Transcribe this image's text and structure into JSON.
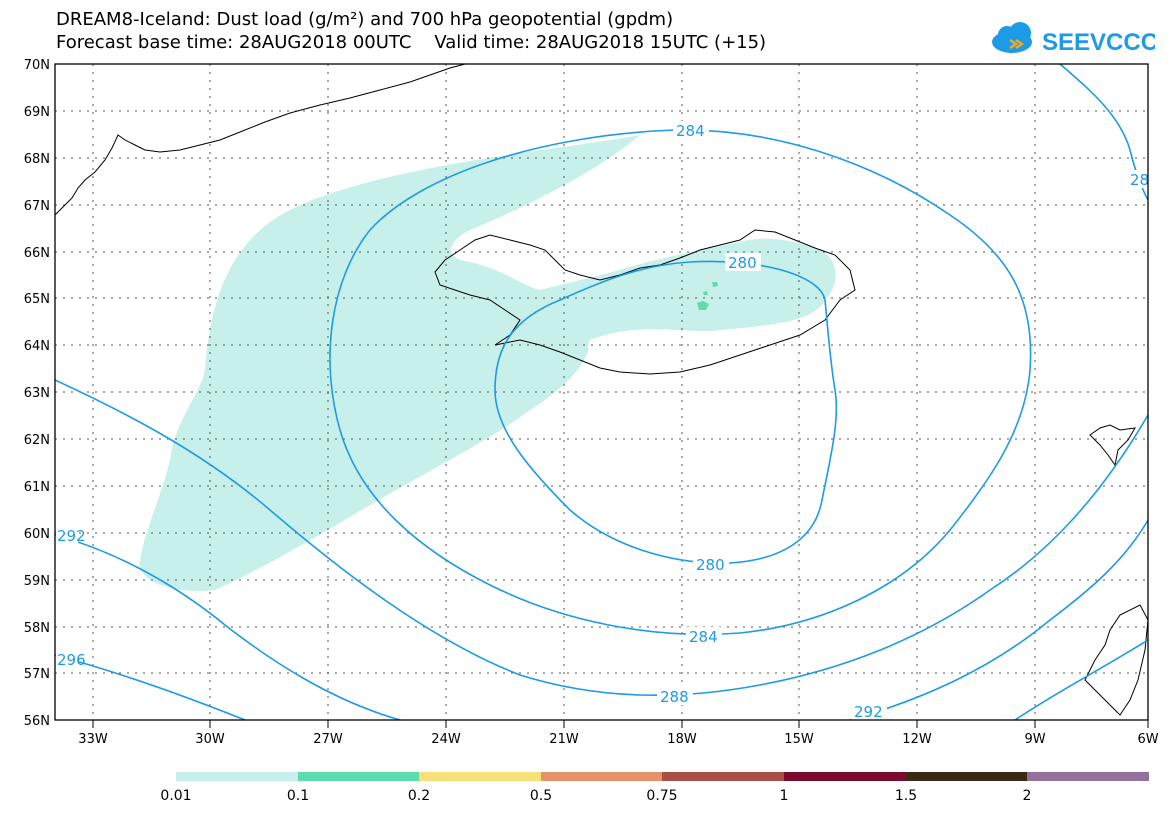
{
  "header": {
    "title_line1": "DREAM8-Iceland: Dust load (g/m²) and 700 hPa geopotential (gpdm)",
    "title_line2": "Forecast base time: 28AUG2018 00UTC    Valid time: 28AUG2018 15UTC (+15)",
    "logo_text": "SEEVCCC",
    "logo_icon": "cloud-icon"
  },
  "map": {
    "lat_labels": [
      "70N",
      "69N",
      "68N",
      "67N",
      "66N",
      "65N",
      "64N",
      "63N",
      "62N",
      "61N",
      "60N",
      "59N",
      "58N",
      "57N",
      "56N"
    ],
    "lon_labels": [
      "33W",
      "30W",
      "27W",
      "24W",
      "21W",
      "18W",
      "15W",
      "12W",
      "9W",
      "6W"
    ],
    "contour_labels": [
      "284",
      "280",
      "280",
      "284",
      "288",
      "292",
      "292",
      "296",
      "28"
    ],
    "contour_color": "#1e9be6",
    "dust_color": "#c7f0ea"
  },
  "legend": {
    "labels": [
      "0.01",
      "0.1",
      "0.2",
      "0.5",
      "0.75",
      "1",
      "1.5",
      "2"
    ],
    "colors": [
      "#c7f0ea",
      "#5fdbb0",
      "#f7e27a",
      "#e8906a",
      "#a85048",
      "#7c0a2e",
      "#3a2a14",
      "#96709c"
    ]
  }
}
